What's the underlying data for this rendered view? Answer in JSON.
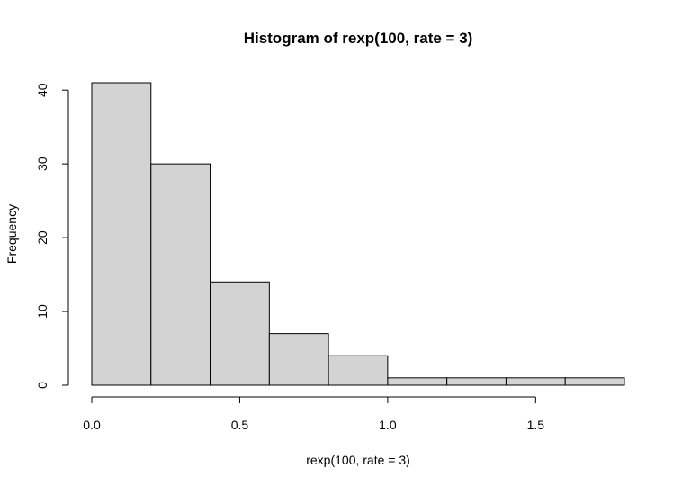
{
  "chart_data": {
    "type": "bar",
    "title": "Histogram of rexp(100, rate = 3)",
    "xlabel": "rexp(100, rate = 3)",
    "ylabel": "Frequency",
    "bin_edges": [
      0.0,
      0.2,
      0.4,
      0.6,
      0.8,
      1.0,
      1.2,
      1.4,
      1.6,
      1.8
    ],
    "values": [
      41,
      30,
      14,
      7,
      4,
      1,
      1,
      1,
      1
    ],
    "xlim": [
      0.0,
      1.8
    ],
    "ylim": [
      0,
      41
    ],
    "x_ticks": [
      0.0,
      0.5,
      1.0,
      1.5
    ],
    "x_tick_labels": [
      "0.0",
      "0.5",
      "1.0",
      "1.5"
    ],
    "y_ticks": [
      0,
      10,
      20,
      30,
      40
    ],
    "y_tick_labels": [
      "0",
      "10",
      "20",
      "30",
      "40"
    ],
    "grid": false,
    "colors": {
      "bar_fill": "#d3d3d3",
      "bar_stroke": "#000000"
    }
  }
}
